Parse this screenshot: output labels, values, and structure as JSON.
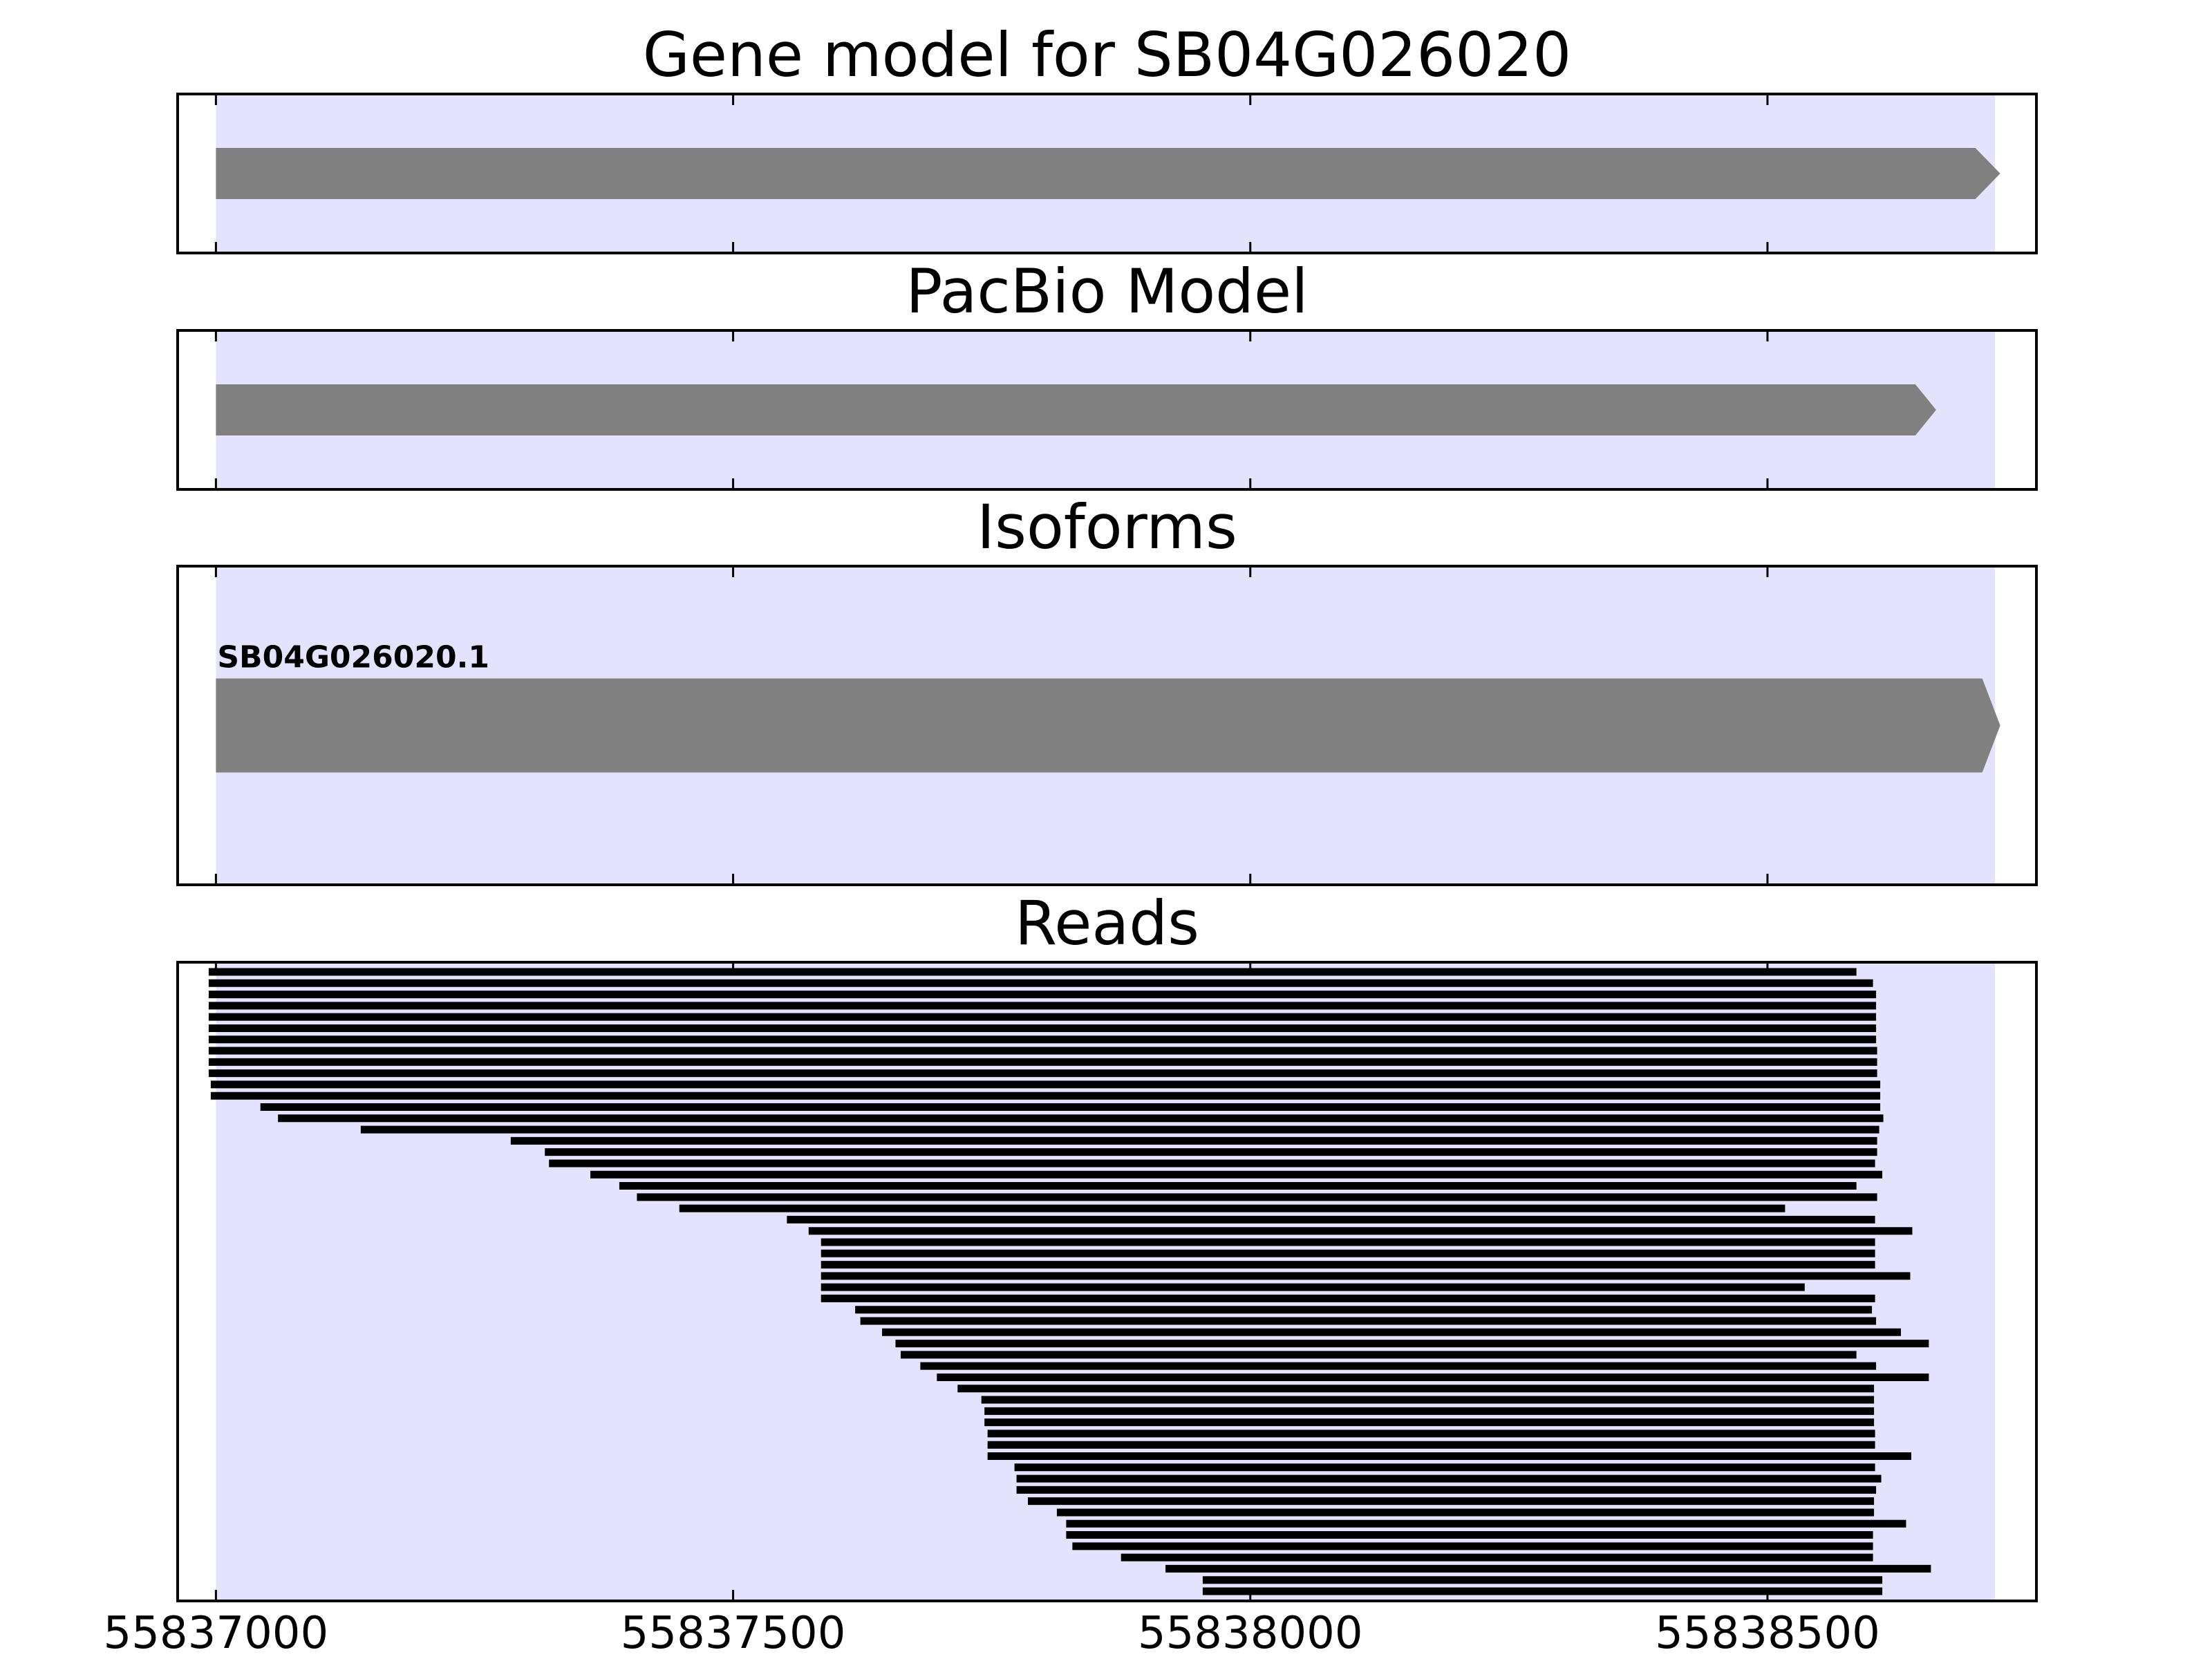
{
  "chart_data": {
    "type": "gene-track",
    "xlim": [
      55836963,
      55838760
    ],
    "xticks": [
      55837000,
      55837500,
      55838000,
      55838500
    ],
    "xtick_labels": [
      "55837000",
      "55837500",
      "55838000",
      "55838500"
    ],
    "region": [
      55837000,
      55838720
    ],
    "colors": {
      "region": "#e3e3fd",
      "feature": "#808080",
      "read": "#000000",
      "frame": "#000000"
    },
    "panels": [
      {
        "title": "Gene model for SB04G026020",
        "features": [
          {
            "start": 55837000,
            "end": 55838725,
            "strand": "+"
          }
        ]
      },
      {
        "title": "PacBio Model",
        "features": [
          {
            "start": 55837000,
            "end": 55838663,
            "strand": "+"
          }
        ]
      },
      {
        "title": "Isoforms",
        "features": [
          {
            "name": "SB04G026020.1",
            "start": 55837000,
            "end": 55838725,
            "strand": "+"
          }
        ]
      },
      {
        "title": "Reads",
        "reads": [
          [
            55836993,
            55838586
          ],
          [
            55836993,
            55838602
          ],
          [
            55836993,
            55838605
          ],
          [
            55836993,
            55838605
          ],
          [
            55836993,
            55838605
          ],
          [
            55836993,
            55838605
          ],
          [
            55836993,
            55838605
          ],
          [
            55836993,
            55838606
          ],
          [
            55836993,
            55838606
          ],
          [
            55836993,
            55838606
          ],
          [
            55836995,
            55838609
          ],
          [
            55836995,
            55838609
          ],
          [
            55837043,
            55838609
          ],
          [
            55837060,
            55838612
          ],
          [
            55837140,
            55838608
          ],
          [
            55837285,
            55838606
          ],
          [
            55837318,
            55838606
          ],
          [
            55837322,
            55838604
          ],
          [
            55837362,
            55838611
          ],
          [
            55837390,
            55838586
          ],
          [
            55837407,
            55838606
          ],
          [
            55837448,
            55838517
          ],
          [
            55837552,
            55838604
          ],
          [
            55837573,
            55838640
          ],
          [
            55837585,
            55838604
          ],
          [
            55837585,
            55838604
          ],
          [
            55837585,
            55838604
          ],
          [
            55837585,
            55838638
          ],
          [
            55837585,
            55838536
          ],
          [
            55837585,
            55838604
          ],
          [
            55837618,
            55838601
          ],
          [
            55837623,
            55838605
          ],
          [
            55837644,
            55838629
          ],
          [
            55837657,
            55838656
          ],
          [
            55837662,
            55838586
          ],
          [
            55837681,
            55838605
          ],
          [
            55837697,
            55838656
          ],
          [
            55837717,
            55838603
          ],
          [
            55837740,
            55838603
          ],
          [
            55837743,
            55838603
          ],
          [
            55837743,
            55838603
          ],
          [
            55837746,
            55838604
          ],
          [
            55837746,
            55838604
          ],
          [
            55837746,
            55838639
          ],
          [
            55837772,
            55838604
          ],
          [
            55837774,
            55838610
          ],
          [
            55837774,
            55838605
          ],
          [
            55837785,
            55838603
          ],
          [
            55837813,
            55838603
          ],
          [
            55837822,
            55838634
          ],
          [
            55837822,
            55838602
          ],
          [
            55837828,
            55838602
          ],
          [
            55837875,
            55838602
          ],
          [
            55837918,
            55838658
          ],
          [
            55837954,
            55838611
          ],
          [
            55837954,
            55838611
          ]
        ]
      }
    ]
  }
}
